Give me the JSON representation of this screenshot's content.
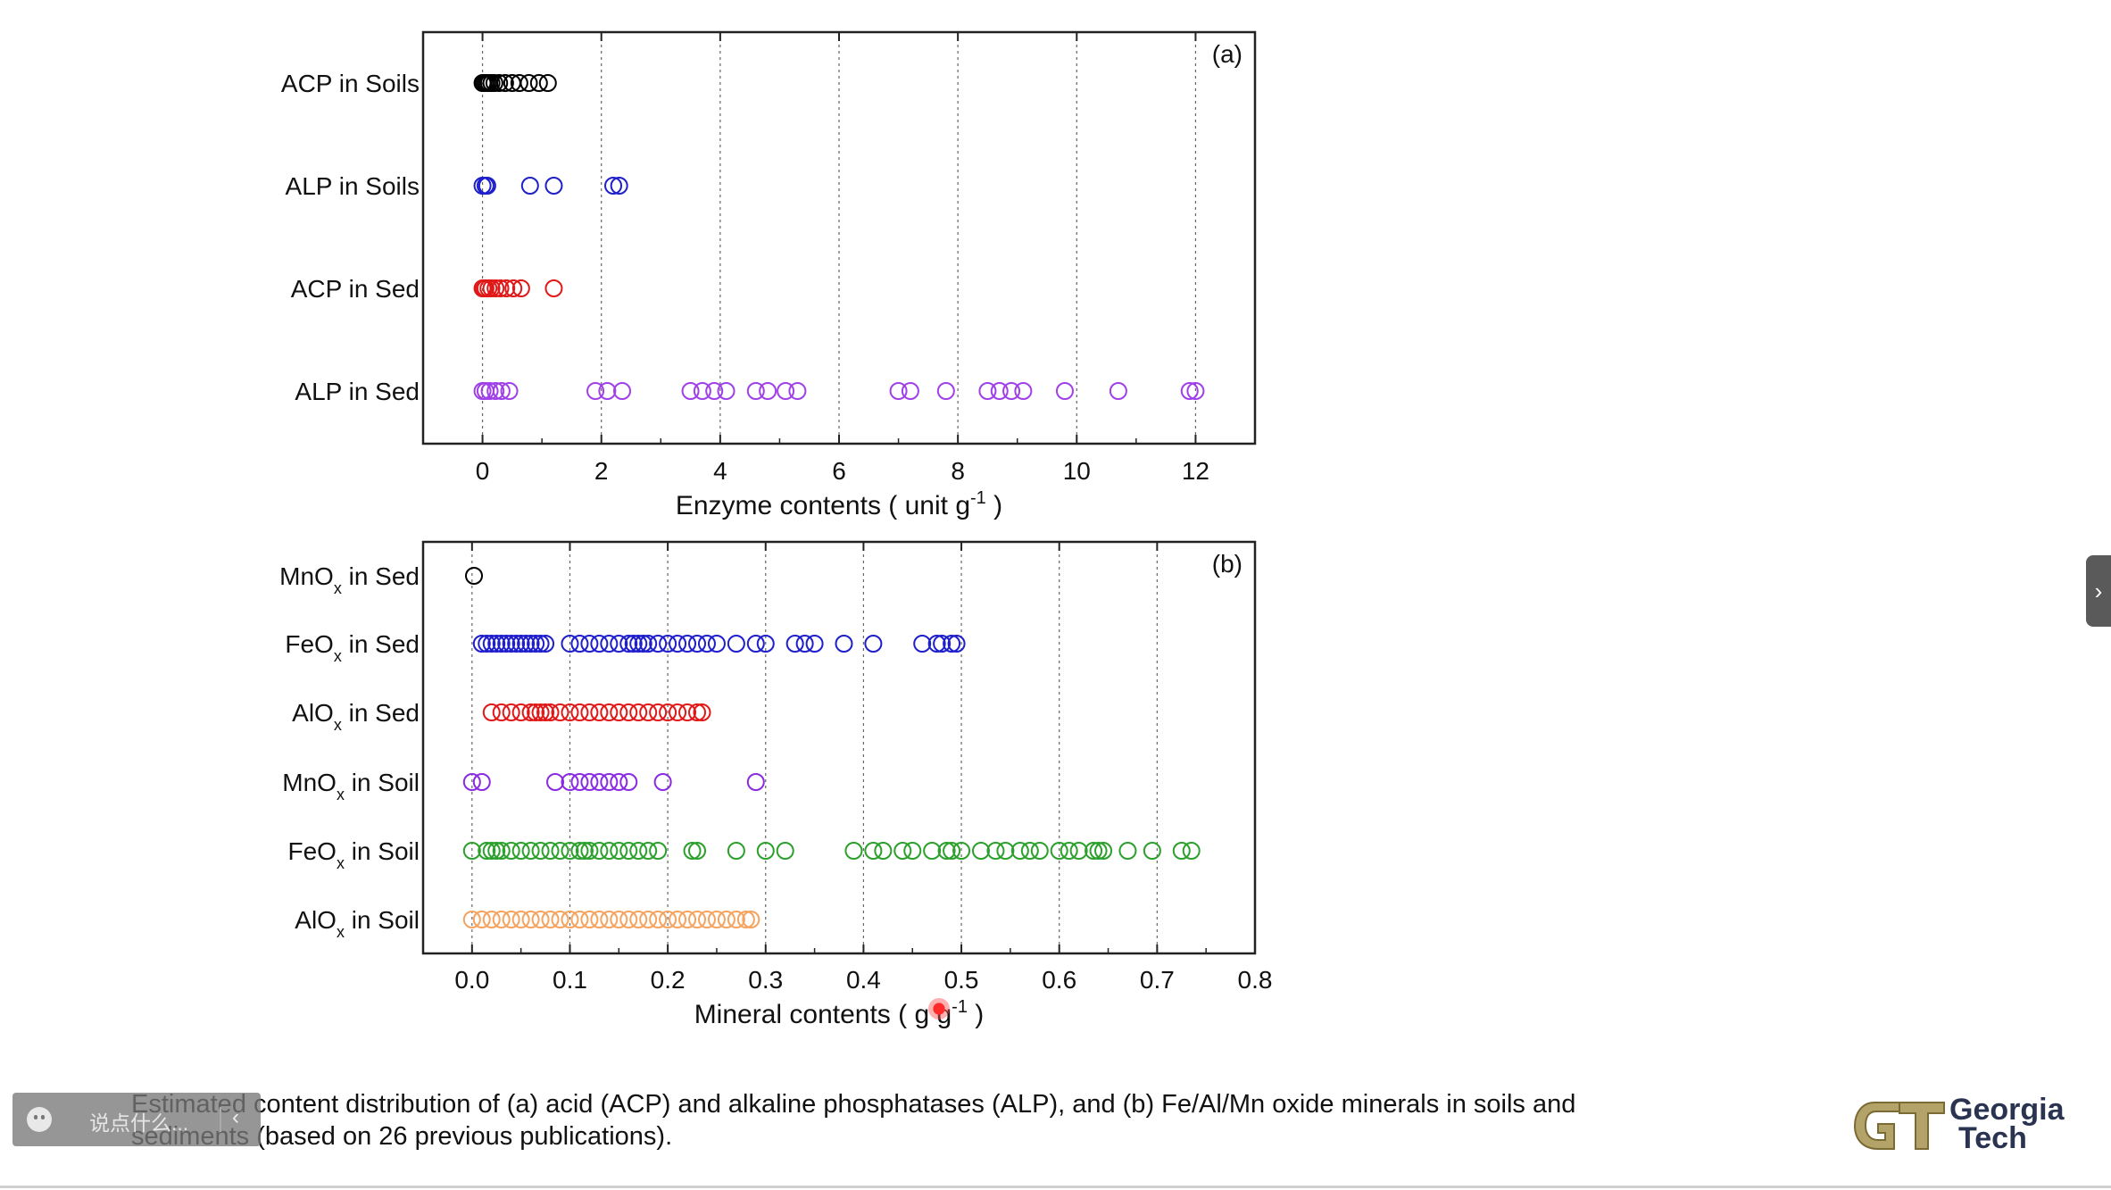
{
  "chart_data": [
    {
      "type": "scatter",
      "panel_label": "(a)",
      "xlabel_main": "Enzyme contents ( unit g",
      "xlabel_sup": "-1",
      "xlabel_end": ")",
      "xlim": [
        -1.0,
        13.0
      ],
      "xticks": [
        0,
        2,
        4,
        6,
        8,
        10,
        12
      ],
      "xtick_labels": [
        "0",
        "2",
        "4",
        "6",
        "8",
        "10",
        "12"
      ],
      "grid": "vertical dotted lines at major ticks",
      "series": [
        {
          "name": "ACP in Soils",
          "color": "#000000",
          "x": [
            0.0,
            0.02,
            0.05,
            0.08,
            0.11,
            0.15,
            0.2,
            0.28,
            0.38,
            0.5,
            0.62,
            0.78,
            0.95,
            1.1
          ]
        },
        {
          "name": "ALP in Soils",
          "color": "#1f1fcc",
          "x": [
            0.0,
            0.05,
            0.08,
            0.8,
            1.2,
            2.2,
            2.3
          ]
        },
        {
          "name": "ACP in Sed",
          "color": "#e01818",
          "x": [
            0.0,
            0.02,
            0.05,
            0.1,
            0.15,
            0.22,
            0.3,
            0.4,
            0.52,
            0.65,
            1.2
          ]
        },
        {
          "name": "ALP in Sed",
          "color": "#a040e8",
          "x": [
            0.0,
            0.05,
            0.12,
            0.22,
            0.32,
            0.45,
            1.9,
            2.1,
            2.35,
            3.5,
            3.7,
            3.9,
            4.1,
            4.6,
            4.8,
            5.1,
            5.3,
            7.0,
            7.2,
            7.8,
            8.5,
            8.7,
            8.9,
            9.1,
            9.8,
            10.7,
            11.9,
            12.0
          ]
        }
      ]
    },
    {
      "type": "scatter",
      "panel_label": "(b)",
      "xlabel_main": "Mineral contents ( g g",
      "xlabel_sup": "-1",
      "xlabel_end": ")",
      "xlim": [
        -0.05,
        0.8
      ],
      "xticks": [
        0.0,
        0.1,
        0.2,
        0.3,
        0.4,
        0.5,
        0.6,
        0.7,
        0.8
      ],
      "xtick_labels": [
        "0.0",
        "0.1",
        "0.2",
        "0.3",
        "0.4",
        "0.5",
        "0.6",
        "0.7",
        "0.8"
      ],
      "grid": "vertical dotted lines at major ticks",
      "series": [
        {
          "name_main": "MnO",
          "name_sub": "x",
          "name_rest": " in Sed",
          "color": "#000000",
          "x": [
            0.002
          ]
        },
        {
          "name_main": "FeO",
          "name_sub": "x",
          "name_rest": " in Sed",
          "color": "#1f1fcc",
          "x": [
            0.01,
            0.015,
            0.02,
            0.025,
            0.03,
            0.035,
            0.04,
            0.045,
            0.05,
            0.055,
            0.06,
            0.065,
            0.07,
            0.075,
            0.1,
            0.11,
            0.12,
            0.13,
            0.14,
            0.15,
            0.16,
            0.165,
            0.17,
            0.175,
            0.18,
            0.19,
            0.2,
            0.21,
            0.22,
            0.23,
            0.24,
            0.25,
            0.27,
            0.29,
            0.3,
            0.33,
            0.34,
            0.35,
            0.38,
            0.41,
            0.46,
            0.475,
            0.48,
            0.49,
            0.495
          ]
        },
        {
          "name_main": "AlO",
          "name_sub": "x",
          "name_rest": " in Sed",
          "color": "#e01818",
          "x": [
            0.02,
            0.03,
            0.04,
            0.05,
            0.06,
            0.065,
            0.07,
            0.075,
            0.08,
            0.09,
            0.1,
            0.11,
            0.12,
            0.13,
            0.14,
            0.15,
            0.16,
            0.17,
            0.18,
            0.19,
            0.2,
            0.21,
            0.22,
            0.23,
            0.235
          ]
        },
        {
          "name_main": "MnO",
          "name_sub": "x",
          "name_rest": " in Soil",
          "color": "#8a2be2",
          "x": [
            0.0,
            0.01,
            0.085,
            0.1,
            0.11,
            0.12,
            0.13,
            0.14,
            0.15,
            0.16,
            0.195,
            0.29
          ]
        },
        {
          "name_main": "FeO",
          "name_sub": "x",
          "name_rest": " in Soil",
          "color": "#2ca02c",
          "x": [
            0.0,
            0.015,
            0.02,
            0.025,
            0.03,
            0.04,
            0.05,
            0.06,
            0.07,
            0.08,
            0.09,
            0.1,
            0.11,
            0.115,
            0.12,
            0.13,
            0.14,
            0.15,
            0.16,
            0.17,
            0.18,
            0.19,
            0.225,
            0.23,
            0.27,
            0.3,
            0.32,
            0.39,
            0.41,
            0.42,
            0.44,
            0.45,
            0.47,
            0.485,
            0.49,
            0.5,
            0.52,
            0.535,
            0.545,
            0.56,
            0.57,
            0.58,
            0.6,
            0.61,
            0.62,
            0.635,
            0.64,
            0.645,
            0.67,
            0.695,
            0.725,
            0.735
          ]
        },
        {
          "name_main": "AlO",
          "name_sub": "x",
          "name_rest": " in Soil",
          "color": "#f4a460",
          "x": [
            0.0,
            0.01,
            0.02,
            0.03,
            0.04,
            0.05,
            0.06,
            0.07,
            0.08,
            0.09,
            0.1,
            0.11,
            0.12,
            0.13,
            0.14,
            0.15,
            0.16,
            0.17,
            0.18,
            0.19,
            0.2,
            0.21,
            0.22,
            0.23,
            0.24,
            0.25,
            0.26,
            0.27,
            0.28,
            0.285
          ]
        }
      ]
    }
  ],
  "caption_line1": "Estimated content distribution of (a) acid (ACP) and alkaline phosphatases (ALP), and (b) Fe/Al/Mn oxide minerals in soils and",
  "caption_line2": "sediments (based on 26 previous publications).",
  "logo": {
    "line1": "Georgia",
    "line2": "Tech"
  },
  "danmaku": {
    "placeholder": "说点什么...",
    "arrow": "‹"
  },
  "side_tab_arrow": "›"
}
